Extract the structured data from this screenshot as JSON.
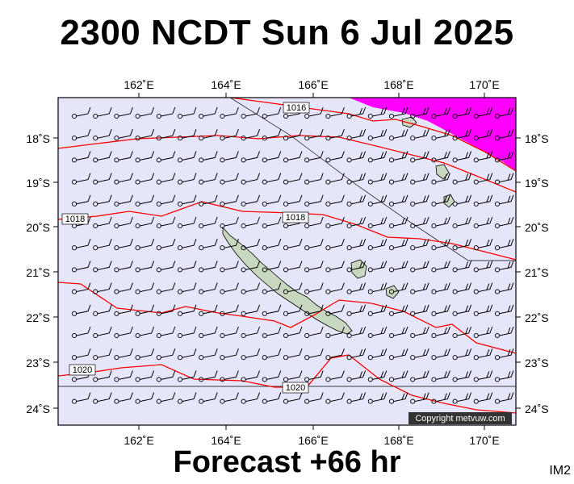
{
  "header": {
    "title": "2300 NCDT Sun 6 Jul 2025"
  },
  "footer": {
    "forecast": "Forecast +66 hr",
    "code": "IM2"
  },
  "copyright": "Copyright metvuw.com",
  "map": {
    "lon_range": [
      160,
      171
    ],
    "lat_range": [
      -24.4,
      -17.3
    ],
    "lon_ticks": [
      "162˚E",
      "164˚E",
      "166˚E",
      "168˚E",
      "170˚E"
    ],
    "lat_ticks": [
      "18˚S",
      "19˚S",
      "20˚S",
      "21˚S",
      "22˚S",
      "23˚S",
      "24˚S"
    ],
    "isobar_labels": [
      "1016",
      "1018",
      "1018",
      "1020",
      "1020"
    ],
    "colors": {
      "ocean": "#e6e6fa",
      "land": "#c8d8c0",
      "rain_heavy": "#ff00ff",
      "isobar": "#ff0000"
    }
  }
}
